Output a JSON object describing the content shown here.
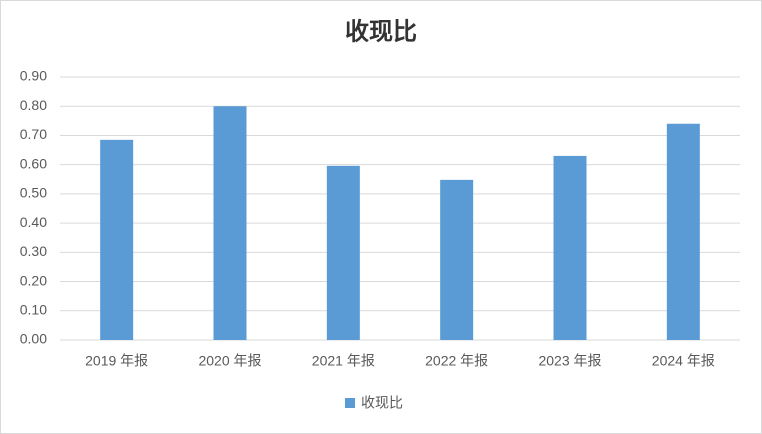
{
  "chart_data": {
    "type": "bar",
    "title": "收现比",
    "categories": [
      "2019 年报",
      "2020 年报",
      "2021 年报",
      "2022 年报",
      "2023 年报",
      "2024 年报"
    ],
    "series": [
      {
        "name": "收现比",
        "color": "#5b9bd5",
        "values": [
          0.685,
          0.8,
          0.596,
          0.548,
          0.63,
          0.74
        ]
      }
    ],
    "ylim": [
      0,
      0.9
    ],
    "yticks": [
      {
        "value": 0,
        "label": "0.00"
      },
      {
        "value": 0.1,
        "label": "0.10"
      },
      {
        "value": 0.2,
        "label": "0.20"
      },
      {
        "value": 0.3,
        "label": "0.30"
      },
      {
        "value": 0.4,
        "label": "0.40"
      },
      {
        "value": 0.5,
        "label": "0.50"
      },
      {
        "value": 0.6,
        "label": "0.60"
      },
      {
        "value": 0.7,
        "label": "0.70"
      },
      {
        "value": 0.8,
        "label": "0.80"
      },
      {
        "value": 0.9,
        "label": "0.90"
      }
    ],
    "grid": true,
    "legend": "bottom"
  }
}
